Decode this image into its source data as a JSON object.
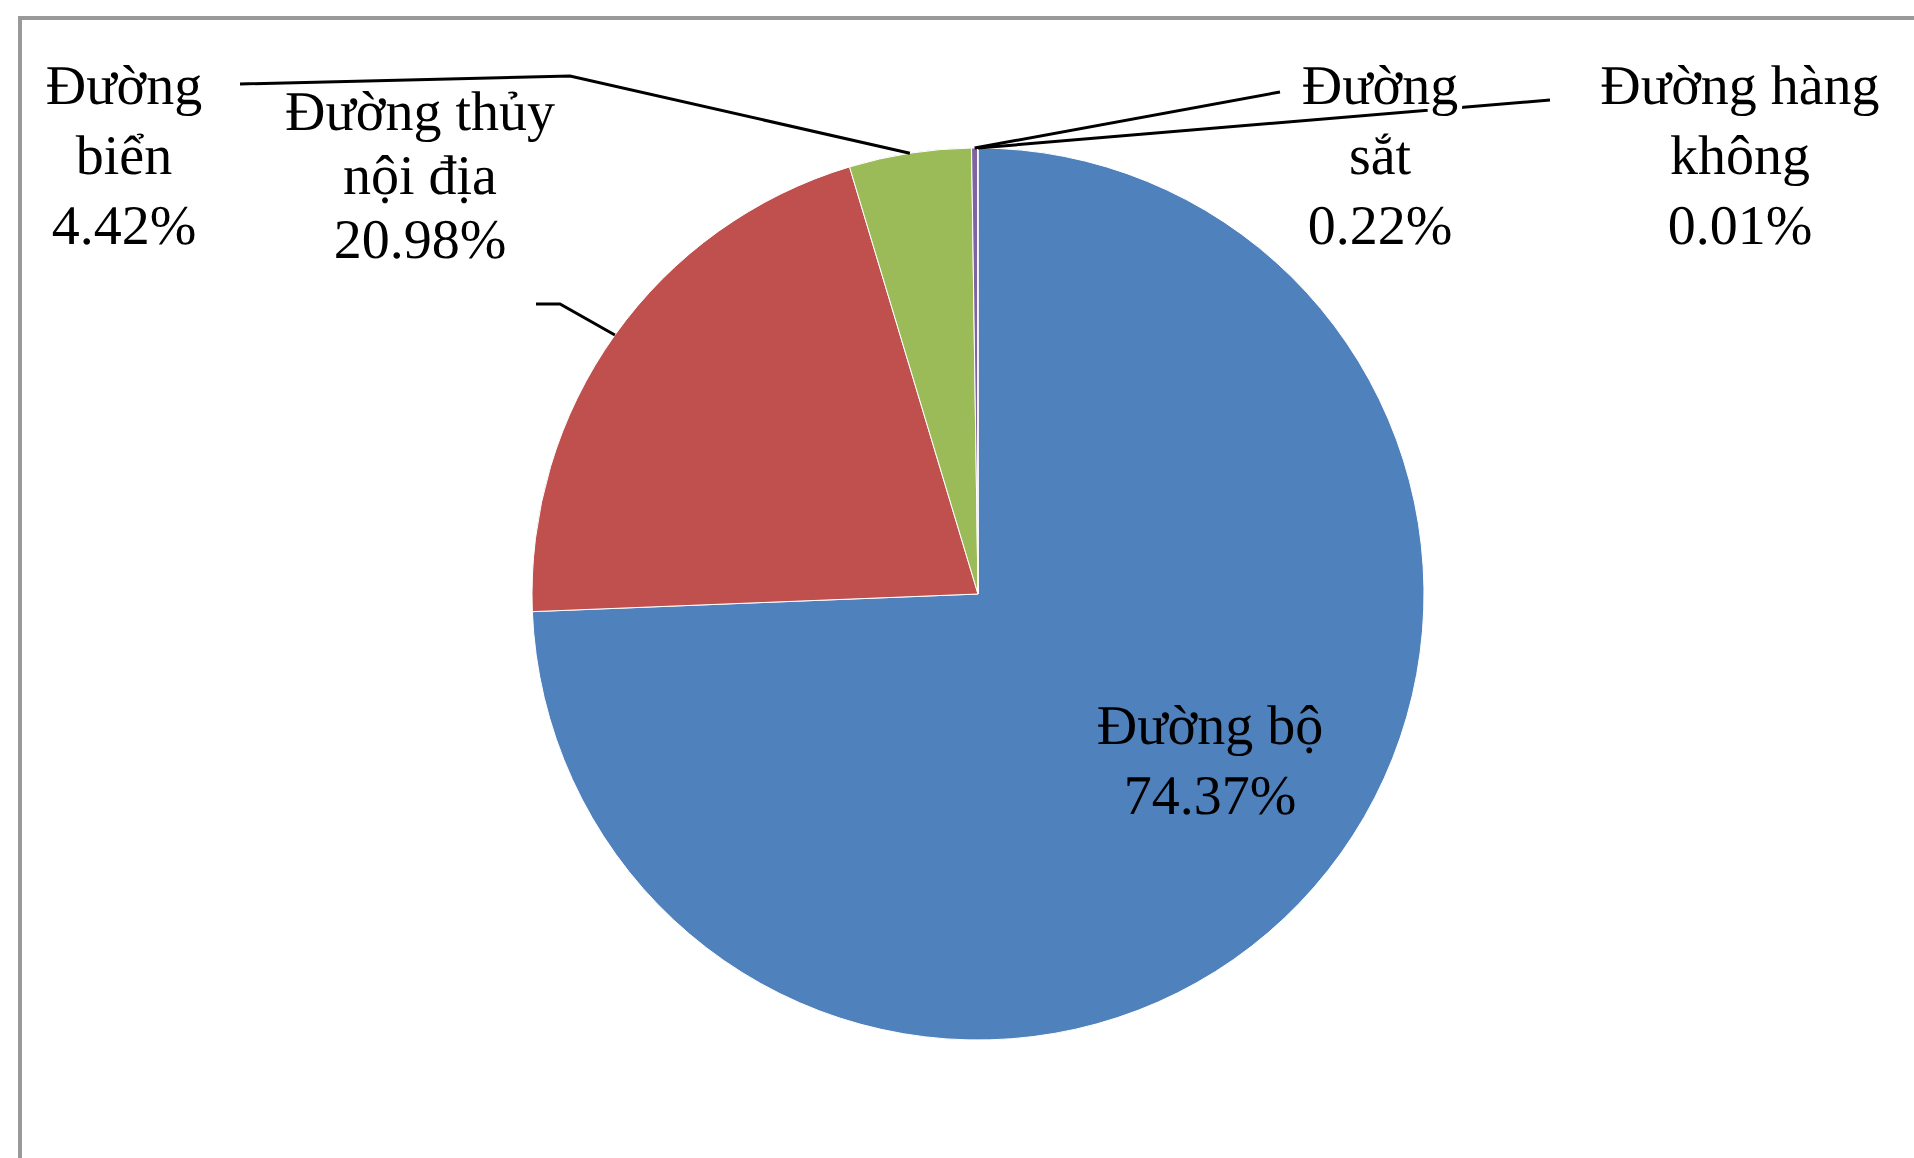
{
  "chart_data": {
    "type": "pie",
    "categories": [
      "Đường bộ",
      "Đường thủy nội địa",
      "Đường biển",
      "Đường sắt",
      "Đường hàng không"
    ],
    "values": [
      74.37,
      20.98,
      4.42,
      0.22,
      0.01
    ],
    "colors": [
      "#4f81bd",
      "#c0504d",
      "#9bbb59",
      "#8064a2",
      "#4bacc6"
    ],
    "value_labels": [
      "74.37%",
      "20.98%",
      "4.42%",
      "0.22%",
      "0.01%"
    ]
  }
}
